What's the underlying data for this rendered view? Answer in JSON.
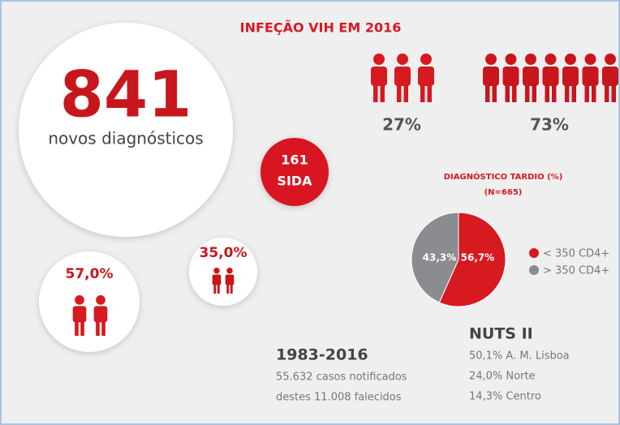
{
  "infographic": {
    "title": "INFEÇÃO VIH EM 2016",
    "new_cases": {
      "number": "841",
      "label": "novos diagnósticos"
    },
    "aids": {
      "number": "161",
      "label": "SIDA"
    },
    "gender": {
      "women": "27%",
      "men": "73%"
    },
    "groups": {
      "left": "57,0%",
      "right": "35,0%"
    },
    "history": {
      "heading": "1983-2016",
      "lines": [
        "55.632 casos notificados",
        "destes 11.008 falecidos"
      ]
    },
    "nuts": {
      "heading": "NUTS II",
      "lines": [
        "50,1% A. M. Lisboa",
        "24,0% Norte",
        "14,3% Centro"
      ]
    }
  },
  "chart_data": {
    "type": "pie",
    "title": "DIAGNÓSTICO TARDIO (%)",
    "subtitle": "(N=665)",
    "series": [
      {
        "name": "< 350 CD4+",
        "color": "#d71920",
        "values": [
          56.7
        ],
        "value_labels": [
          "56,7%"
        ]
      },
      {
        "name": "> 350 CD4+",
        "color": "#8a8c8f",
        "values": [
          43.3
        ],
        "value_labels": [
          "43,3%"
        ]
      }
    ]
  }
}
